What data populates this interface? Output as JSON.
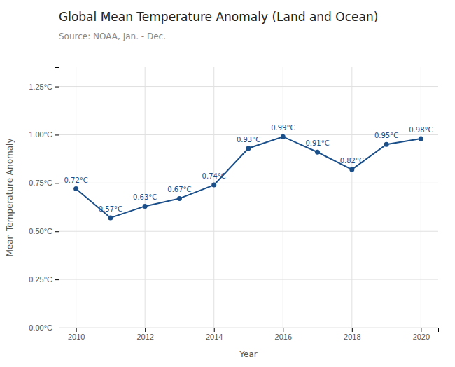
{
  "chart_data": {
    "type": "line",
    "title": "Global Mean Temperature Anomaly (Land and Ocean)",
    "subtitle": "Source: NOAA, Jan. - Dec.",
    "x_label": "Year",
    "y_label": "Mean Temperature Anomaly",
    "x": [
      2010,
      2011,
      2012,
      2013,
      2014,
      2015,
      2016,
      2017,
      2018,
      2019,
      2020
    ],
    "values": [
      0.72,
      0.57,
      0.63,
      0.67,
      0.74,
      0.93,
      0.99,
      0.91,
      0.82,
      0.95,
      0.98
    ],
    "value_labels": [
      "0.72°C",
      "0.57°C",
      "0.63°C",
      "0.67°C",
      "0.74°C",
      "0.93°C",
      "0.99°C",
      "0.91°C",
      "0.82°C",
      "0.95°C",
      "0.98°C"
    ],
    "data_labels": true,
    "color": "#1b4f8a",
    "marker": "circle",
    "xlim": [
      2009.5,
      2020.5
    ],
    "xticks": [
      2010,
      2012,
      2014,
      2016,
      2018,
      2020
    ],
    "ylim": [
      0.0,
      1.35
    ],
    "yticks": [
      {
        "value": 0.0,
        "label": "0.00°C"
      },
      {
        "value": 0.25,
        "label": "0.25°C"
      },
      {
        "value": 0.5,
        "label": "0.50°C"
      },
      {
        "value": 0.75,
        "label": "0.75°C"
      },
      {
        "value": 1.0,
        "label": "1.00°C"
      },
      {
        "value": 1.25,
        "label": "1.25°C"
      }
    ],
    "grid": true
  }
}
